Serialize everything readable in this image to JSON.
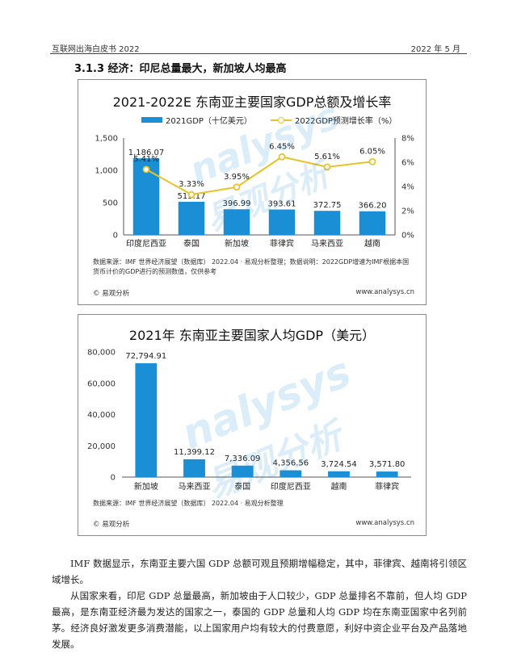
{
  "header": {
    "left": "互联网出海白皮书 2022",
    "right": "2022 年 5 月"
  },
  "section": {
    "title": "3.1.3  经济：印尼总量最大，新加坡人均最高"
  },
  "watermark": {
    "brand": "nalysys",
    "cn": "易观分析"
  },
  "colors": {
    "bar": "#1b8fd6",
    "line": "#e7c32b"
  },
  "chart1": {
    "title": "2021-2022E 东南亚主要国家GDP总额及增长率",
    "note": "数据来源：IMF 世界经济展望（数据库） 2022.04 · 易观分析整理；数据说明：2022GDP增速为IMF根据本国货币计价的GDP进行的预测数值，仅供参考",
    "copyright": "© 易观分析",
    "site": "www.analysys.cn"
  },
  "chart2": {
    "title": "2021年 东南亚主要国家人均GDP（美元）",
    "note": "数据来源：IMF 世界经济展望（数据库） 2022.04 · 易观分析整理",
    "copyright": "© 易观分析",
    "site": "www.analysys.cn"
  },
  "chart_data": [
    {
      "type": "bar",
      "title": "2021-2022E 东南亚主要国家GDP总额及增长率",
      "categories": [
        "印度尼西亚",
        "泰国",
        "新加坡",
        "菲律宾",
        "马来西亚",
        "越南"
      ],
      "series": [
        {
          "name": "2021GDP（十亿美元）",
          "type": "bar",
          "axis": "left",
          "values": [
            1186.07,
            513.17,
            396.99,
            393.61,
            372.75,
            366.2
          ],
          "labels": [
            "1,186.07",
            "513.17",
            "396.99",
            "393.61",
            "372.75",
            "366.20"
          ]
        },
        {
          "name": "2022GDP预测增长率（%）",
          "type": "line",
          "axis": "right",
          "values": [
            5.41,
            3.33,
            3.95,
            6.45,
            5.61,
            6.05
          ],
          "labels": [
            "5.41%",
            "3.33%",
            "3.95%",
            "6.45%",
            "5.61%",
            "6.05%"
          ]
        }
      ],
      "ylim": [
        0,
        1500
      ],
      "yticks": [
        "0",
        "500",
        "1,000",
        "1,500"
      ],
      "y2lim": [
        0,
        8
      ],
      "y2ticks": [
        "0%",
        "2%",
        "4%",
        "6%",
        "8%"
      ],
      "legend": "top",
      "grid": false
    },
    {
      "type": "bar",
      "title": "2021年 东南亚主要国家人均GDP（美元）",
      "categories": [
        "新加坡",
        "马来西亚",
        "泰国",
        "印度尼西亚",
        "越南",
        "菲律宾"
      ],
      "values": [
        72794.91,
        11399.12,
        7336.09,
        4356.56,
        3724.54,
        3571.8
      ],
      "labels": [
        "72,794.91",
        "11,399.12",
        "7,336.09",
        "4,356.56",
        "3,724.54",
        "3,571.80"
      ],
      "ylim": [
        0,
        80000
      ],
      "yticks": [
        "0",
        "20,000",
        "40,000",
        "60,000",
        "80,000"
      ],
      "grid": false
    }
  ],
  "paragraphs": [
    "IMF 数据显示，东南亚主要六国 GDP 总额可观且预期增幅稳定，其中，菲律宾、越南将引领区域增长。",
    "从国家来看，印尼 GDP 总量最高，新加坡由于人口较少，GDP 总量排名不靠前，但人均 GDP 最高，是东南亚经济最为发达的国家之一，泰国的 GDP 总量和人均 GDP 均在东南亚国家中名列前茅。经济良好激发更多消费潜能，以上国家用户均有较大的付费意愿，利好中资企业平台及产品落地发展。"
  ]
}
